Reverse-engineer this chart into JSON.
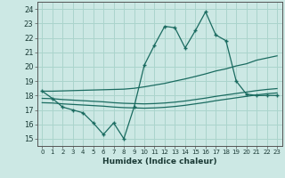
{
  "title": "",
  "xlabel": "Humidex (Indice chaleur)",
  "bg_color": "#cce8e4",
  "grid_color": "#aad4cc",
  "line_color": "#1a6b60",
  "xlim": [
    -0.5,
    23.5
  ],
  "ylim": [
    14.5,
    24.5
  ],
  "yticks": [
    15,
    16,
    17,
    18,
    19,
    20,
    21,
    22,
    23,
    24
  ],
  "xticks": [
    0,
    1,
    2,
    3,
    4,
    5,
    6,
    7,
    8,
    9,
    10,
    11,
    12,
    13,
    14,
    15,
    16,
    17,
    18,
    19,
    20,
    21,
    22,
    23
  ],
  "main_series": [
    18.3,
    17.8,
    17.2,
    17.0,
    16.8,
    16.1,
    15.3,
    16.1,
    15.0,
    17.2,
    20.1,
    21.5,
    22.8,
    22.7,
    21.3,
    22.5,
    23.8,
    22.2,
    21.8,
    19.0,
    18.1,
    18.0,
    18.0,
    18.0
  ],
  "upper_line": [
    18.3,
    18.3,
    18.32,
    18.34,
    18.36,
    18.38,
    18.4,
    18.42,
    18.44,
    18.5,
    18.6,
    18.72,
    18.84,
    19.0,
    19.15,
    19.32,
    19.5,
    19.7,
    19.85,
    20.05,
    20.2,
    20.45,
    20.6,
    20.75
  ],
  "lower_line1": [
    17.8,
    17.78,
    17.72,
    17.68,
    17.64,
    17.6,
    17.56,
    17.5,
    17.46,
    17.44,
    17.42,
    17.44,
    17.48,
    17.54,
    17.62,
    17.72,
    17.82,
    17.94,
    18.04,
    18.14,
    18.24,
    18.34,
    18.42,
    18.48
  ],
  "lower_line2": [
    17.5,
    17.48,
    17.42,
    17.38,
    17.34,
    17.3,
    17.26,
    17.2,
    17.16,
    17.14,
    17.12,
    17.14,
    17.18,
    17.24,
    17.32,
    17.42,
    17.52,
    17.64,
    17.74,
    17.84,
    17.94,
    18.04,
    18.12,
    18.18
  ]
}
